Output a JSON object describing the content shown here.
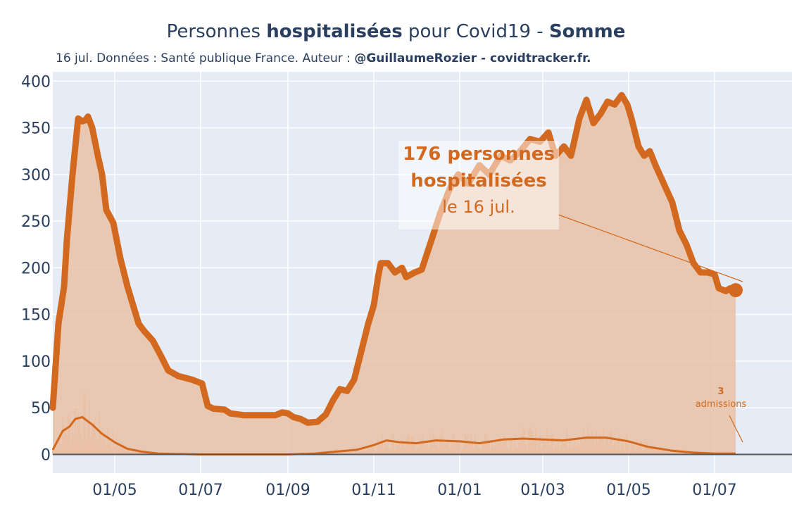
{
  "title": {
    "pre": "Personnes ",
    "bold1": "hospitalisées",
    "mid": " pour Covid19 - ",
    "bold2": "Somme"
  },
  "subtitle": {
    "pre": "16 jul. Données : Santé publique France. Auteur : ",
    "bold": "@GuillaumeRozier - covidtracker.fr."
  },
  "annotation": {
    "line1": "176 personnes",
    "line2": "hospitalisées",
    "line3": "le 16 jul."
  },
  "admissions_annotation": {
    "value": "3",
    "label": "admissions"
  },
  "colors": {
    "line": "#d2691e",
    "fill": "#e9c2a6",
    "plot_bg": "#e5ecf6",
    "grid": "#ffffff",
    "zero": "#555555"
  },
  "chart_data": {
    "type": "line",
    "x_start": "2020-03-18",
    "x_end": "2021-07-16",
    "xlim": [
      "2020-03-18",
      "2021-08-25"
    ],
    "ylim": [
      -20,
      410
    ],
    "yticks": [
      0,
      50,
      100,
      150,
      200,
      250,
      300,
      350,
      400
    ],
    "xticks": [
      {
        "date": "2020-05-01",
        "label": "01/05"
      },
      {
        "date": "2020-07-01",
        "label": "01/07"
      },
      {
        "date": "2020-09-01",
        "label": "01/09"
      },
      {
        "date": "2020-11-01",
        "label": "01/11"
      },
      {
        "date": "2021-01-01",
        "label": "01/01"
      },
      {
        "date": "2021-03-01",
        "label": "01/03"
      },
      {
        "date": "2021-05-01",
        "label": "01/05"
      },
      {
        "date": "2021-07-01",
        "label": "01/07"
      }
    ],
    "series": [
      {
        "name": "hospitalisations",
        "points": [
          [
            "2020-03-18",
            50
          ],
          [
            "2020-03-22",
            140
          ],
          [
            "2020-03-26",
            180
          ],
          [
            "2020-03-28",
            230
          ],
          [
            "2020-04-01",
            300
          ],
          [
            "2020-04-03",
            330
          ],
          [
            "2020-04-05",
            360
          ],
          [
            "2020-04-08",
            357
          ],
          [
            "2020-04-10",
            358
          ],
          [
            "2020-04-12",
            362
          ],
          [
            "2020-04-15",
            350
          ],
          [
            "2020-04-19",
            320
          ],
          [
            "2020-04-22",
            300
          ],
          [
            "2020-04-25",
            262
          ],
          [
            "2020-04-30",
            248
          ],
          [
            "2020-05-05",
            210
          ],
          [
            "2020-05-10",
            180
          ],
          [
            "2020-05-14",
            160
          ],
          [
            "2020-05-18",
            140
          ],
          [
            "2020-05-22",
            132
          ],
          [
            "2020-05-28",
            122
          ],
          [
            "2020-06-03",
            105
          ],
          [
            "2020-06-08",
            90
          ],
          [
            "2020-06-15",
            84
          ],
          [
            "2020-06-25",
            80
          ],
          [
            "2020-07-02",
            76
          ],
          [
            "2020-07-06",
            52
          ],
          [
            "2020-07-10",
            49
          ],
          [
            "2020-07-18",
            48
          ],
          [
            "2020-07-22",
            44
          ],
          [
            "2020-08-01",
            42
          ],
          [
            "2020-08-15",
            42
          ],
          [
            "2020-08-23",
            42
          ],
          [
            "2020-08-28",
            45
          ],
          [
            "2020-09-01",
            44
          ],
          [
            "2020-09-05",
            40
          ],
          [
            "2020-09-10",
            38
          ],
          [
            "2020-09-15",
            34
          ],
          [
            "2020-09-22",
            35
          ],
          [
            "2020-09-28",
            43
          ],
          [
            "2020-10-03",
            58
          ],
          [
            "2020-10-08",
            70
          ],
          [
            "2020-10-13",
            68
          ],
          [
            "2020-10-18",
            80
          ],
          [
            "2020-10-23",
            110
          ],
          [
            "2020-10-28",
            140
          ],
          [
            "2020-11-01",
            160
          ],
          [
            "2020-11-04",
            190
          ],
          [
            "2020-11-06",
            205
          ],
          [
            "2020-11-11",
            205
          ],
          [
            "2020-11-16",
            195
          ],
          [
            "2020-11-21",
            200
          ],
          [
            "2020-11-24",
            190
          ],
          [
            "2020-11-30",
            195
          ],
          [
            "2020-12-05",
            198
          ],
          [
            "2020-12-12",
            230
          ],
          [
            "2020-12-18",
            258
          ],
          [
            "2020-12-25",
            285
          ],
          [
            "2020-12-31",
            300
          ],
          [
            "2021-01-07",
            290
          ],
          [
            "2021-01-15",
            310
          ],
          [
            "2021-01-22",
            300
          ],
          [
            "2021-01-30",
            320
          ],
          [
            "2021-02-06",
            315
          ],
          [
            "2021-02-13",
            325
          ],
          [
            "2021-02-20",
            338
          ],
          [
            "2021-02-27",
            335
          ],
          [
            "2021-03-05",
            345
          ],
          [
            "2021-03-10",
            320
          ],
          [
            "2021-03-16",
            330
          ],
          [
            "2021-03-21",
            320
          ],
          [
            "2021-03-27",
            360
          ],
          [
            "2021-04-01",
            380
          ],
          [
            "2021-04-06",
            355
          ],
          [
            "2021-04-11",
            365
          ],
          [
            "2021-04-16",
            378
          ],
          [
            "2021-04-21",
            375
          ],
          [
            "2021-04-26",
            385
          ],
          [
            "2021-04-30",
            375
          ],
          [
            "2021-05-03",
            360
          ],
          [
            "2021-05-08",
            330
          ],
          [
            "2021-05-12",
            320
          ],
          [
            "2021-05-16",
            325
          ],
          [
            "2021-05-20",
            310
          ],
          [
            "2021-05-26",
            290
          ],
          [
            "2021-06-01",
            270
          ],
          [
            "2021-06-06",
            240
          ],
          [
            "2021-06-11",
            225
          ],
          [
            "2021-06-16",
            205
          ],
          [
            "2021-06-21",
            195
          ],
          [
            "2021-06-26",
            195
          ],
          [
            "2021-07-01",
            193
          ],
          [
            "2021-07-04",
            178
          ],
          [
            "2021-07-09",
            175
          ],
          [
            "2021-07-12",
            178
          ],
          [
            "2021-07-16",
            176
          ]
        ]
      },
      {
        "name": "admissions (lissé)",
        "points": [
          [
            "2020-03-18",
            5
          ],
          [
            "2020-03-25",
            25
          ],
          [
            "2020-03-30",
            30
          ],
          [
            "2020-04-03",
            38
          ],
          [
            "2020-04-08",
            40
          ],
          [
            "2020-04-15",
            32
          ],
          [
            "2020-04-22",
            22
          ],
          [
            "2020-05-01",
            13
          ],
          [
            "2020-05-10",
            6
          ],
          [
            "2020-05-20",
            3
          ],
          [
            "2020-06-01",
            1
          ],
          [
            "2020-07-01",
            0
          ],
          [
            "2020-09-01",
            0
          ],
          [
            "2020-09-20",
            1
          ],
          [
            "2020-10-05",
            3
          ],
          [
            "2020-10-20",
            5
          ],
          [
            "2020-11-01",
            10
          ],
          [
            "2020-11-10",
            15
          ],
          [
            "2020-11-20",
            13
          ],
          [
            "2020-12-01",
            12
          ],
          [
            "2020-12-15",
            15
          ],
          [
            "2021-01-01",
            14
          ],
          [
            "2021-01-15",
            12
          ],
          [
            "2021-02-01",
            16
          ],
          [
            "2021-02-15",
            17
          ],
          [
            "2021-03-01",
            16
          ],
          [
            "2021-03-15",
            15
          ],
          [
            "2021-04-01",
            18
          ],
          [
            "2021-04-15",
            18
          ],
          [
            "2021-05-01",
            14
          ],
          [
            "2021-05-15",
            8
          ],
          [
            "2021-06-01",
            4
          ],
          [
            "2021-06-15",
            2
          ],
          [
            "2021-07-01",
            1
          ],
          [
            "2021-07-16",
            1
          ]
        ]
      }
    ],
    "admissions_bars": {
      "start": "2020-03-18",
      "step_days": 1,
      "max_first_wave": 58,
      "max_second_wave": 45
    }
  }
}
